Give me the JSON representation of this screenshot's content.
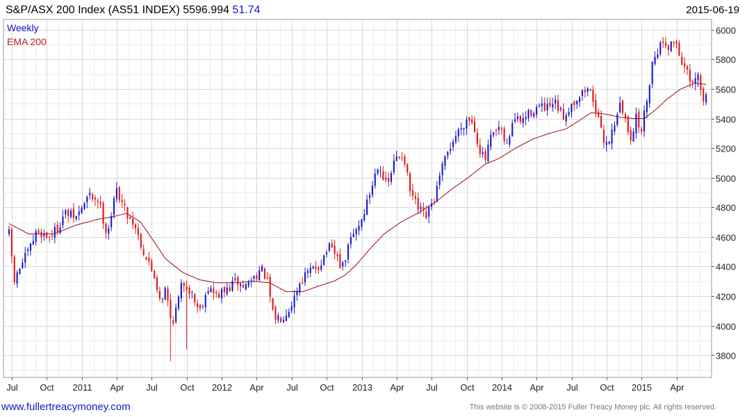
{
  "header": {
    "title": "S&P/ASX 200 Index (AS51 INDEX) 5596.994",
    "change": "51.74",
    "date": "2015-06-19"
  },
  "legend": {
    "weekly": "Weekly",
    "ema": "EMA 200"
  },
  "footer": {
    "url": "www.fullertreacymoney.com",
    "copyright": "This website is © 2008-2015 Fuller Treacy Money plc. All rights reserved."
  },
  "colors": {
    "up": "#1a1acc",
    "down": "#e01818",
    "ema": "#a02020",
    "grid": "#d8d8d8"
  },
  "chart_data": {
    "type": "candlestick",
    "title": "S&P/ASX 200 Index (AS51 INDEX)",
    "frequency": "Weekly",
    "ylim": [
      3650,
      6070
    ],
    "y_ticks": [
      3800,
      4000,
      4200,
      4400,
      4600,
      4800,
      5000,
      5200,
      5400,
      5600,
      5800,
      6000
    ],
    "x_ticks": [
      "Jul",
      "Oct",
      "2011",
      "Apr",
      "Jul",
      "Oct",
      "2012",
      "Apr",
      "Jul",
      "Oct",
      "2013",
      "Apr",
      "Jul",
      "Oct",
      "2014",
      "Apr",
      "Jul",
      "Oct",
      "2015",
      "Apr"
    ],
    "x_range": [
      2010.48,
      2015.47
    ],
    "grid": true,
    "overlay": "EMA 200",
    "anchors": [
      [
        2010.48,
        4620
      ],
      [
        2010.52,
        4290
      ],
      [
        2010.56,
        4400
      ],
      [
        2010.62,
        4500
      ],
      [
        2010.68,
        4640
      ],
      [
        2010.76,
        4600
      ],
      [
        2010.82,
        4650
      ],
      [
        2010.88,
        4760
      ],
      [
        2010.96,
        4730
      ],
      [
        2011.05,
        4880
      ],
      [
        2011.12,
        4850
      ],
      [
        2011.18,
        4620
      ],
      [
        2011.25,
        4920
      ],
      [
        2011.32,
        4760
      ],
      [
        2011.38,
        4680
      ],
      [
        2011.44,
        4500
      ],
      [
        2011.52,
        4330
      ],
      [
        2011.56,
        4180
      ],
      [
        2011.6,
        4250
      ],
      [
        2011.64,
        4010
      ],
      [
        2011.68,
        4130
      ],
      [
        2011.72,
        4300
      ],
      [
        2011.78,
        4230
      ],
      [
        2011.84,
        4100
      ],
      [
        2011.9,
        4260
      ],
      [
        2011.96,
        4200
      ],
      [
        2012.04,
        4240
      ],
      [
        2012.1,
        4300
      ],
      [
        2012.16,
        4260
      ],
      [
        2012.22,
        4320
      ],
      [
        2012.28,
        4380
      ],
      [
        2012.32,
        4320
      ],
      [
        2012.37,
        4050
      ],
      [
        2012.43,
        4060
      ],
      [
        2012.49,
        4130
      ],
      [
        2012.56,
        4300
      ],
      [
        2012.62,
        4360
      ],
      [
        2012.7,
        4410
      ],
      [
        2012.76,
        4530
      ],
      [
        2012.82,
        4470
      ],
      [
        2012.86,
        4380
      ],
      [
        2012.92,
        4580
      ],
      [
        2013.0,
        4720
      ],
      [
        2013.06,
        4900
      ],
      [
        2013.12,
        5110
      ],
      [
        2013.18,
        4930
      ],
      [
        2013.24,
        5130
      ],
      [
        2013.3,
        5160
      ],
      [
        2013.34,
        4920
      ],
      [
        2013.4,
        4790
      ],
      [
        2013.46,
        4730
      ],
      [
        2013.52,
        4860
      ],
      [
        2013.58,
        5080
      ],
      [
        2013.64,
        5230
      ],
      [
        2013.7,
        5330
      ],
      [
        2013.76,
        5410
      ],
      [
        2013.8,
        5360
      ],
      [
        2013.84,
        5200
      ],
      [
        2013.88,
        5110
      ],
      [
        2013.92,
        5260
      ],
      [
        2013.98,
        5330
      ],
      [
        2014.04,
        5210
      ],
      [
        2014.08,
        5400
      ],
      [
        2014.14,
        5380
      ],
      [
        2014.2,
        5440
      ],
      [
        2014.26,
        5480
      ],
      [
        2014.32,
        5460
      ],
      [
        2014.38,
        5500
      ],
      [
        2014.44,
        5410
      ],
      [
        2014.5,
        5500
      ],
      [
        2014.56,
        5560
      ],
      [
        2014.62,
        5610
      ],
      [
        2014.66,
        5520
      ],
      [
        2014.7,
        5340
      ],
      [
        2014.74,
        5230
      ],
      [
        2014.78,
        5280
      ],
      [
        2014.84,
        5500
      ],
      [
        2014.88,
        5400
      ],
      [
        2014.92,
        5270
      ],
      [
        2014.96,
        5400
      ],
      [
        2015.0,
        5320
      ],
      [
        2015.04,
        5550
      ],
      [
        2015.08,
        5800
      ],
      [
        2015.12,
        5880
      ],
      [
        2015.16,
        5930
      ],
      [
        2015.2,
        5880
      ],
      [
        2015.24,
        5940
      ],
      [
        2015.28,
        5800
      ],
      [
        2015.32,
        5720
      ],
      [
        2015.36,
        5600
      ],
      [
        2015.4,
        5700
      ],
      [
        2015.44,
        5500
      ],
      [
        2015.47,
        5597
      ]
    ],
    "ema_anchors": [
      [
        2010.48,
        4690
      ],
      [
        2010.62,
        4620
      ],
      [
        2010.8,
        4620
      ],
      [
        2010.96,
        4680
      ],
      [
        2011.12,
        4720
      ],
      [
        2011.24,
        4740
      ],
      [
        2011.32,
        4760
      ],
      [
        2011.42,
        4700
      ],
      [
        2011.5,
        4590
      ],
      [
        2011.6,
        4450
      ],
      [
        2011.72,
        4360
      ],
      [
        2011.84,
        4310
      ],
      [
        2011.96,
        4290
      ],
      [
        2012.1,
        4290
      ],
      [
        2012.22,
        4300
      ],
      [
        2012.34,
        4290
      ],
      [
        2012.46,
        4230
      ],
      [
        2012.58,
        4230
      ],
      [
        2012.7,
        4270
      ],
      [
        2012.8,
        4300
      ],
      [
        2012.88,
        4340
      ],
      [
        2012.96,
        4410
      ],
      [
        2013.06,
        4520
      ],
      [
        2013.16,
        4620
      ],
      [
        2013.28,
        4700
      ],
      [
        2013.4,
        4760
      ],
      [
        2013.52,
        4830
      ],
      [
        2013.64,
        4920
      ],
      [
        2013.76,
        5000
      ],
      [
        2013.88,
        5090
      ],
      [
        2013.98,
        5130
      ],
      [
        2014.1,
        5200
      ],
      [
        2014.22,
        5260
      ],
      [
        2014.34,
        5300
      ],
      [
        2014.46,
        5330
      ],
      [
        2014.56,
        5390
      ],
      [
        2014.64,
        5440
      ],
      [
        2014.74,
        5430
      ],
      [
        2014.84,
        5410
      ],
      [
        2014.94,
        5400
      ],
      [
        2015.02,
        5400
      ],
      [
        2015.1,
        5460
      ],
      [
        2015.18,
        5530
      ],
      [
        2015.28,
        5600
      ],
      [
        2015.38,
        5640
      ],
      [
        2015.47,
        5630
      ]
    ],
    "lows": [
      [
        2011.64,
        3760
      ],
      [
        2011.74,
        3840
      ]
    ]
  }
}
